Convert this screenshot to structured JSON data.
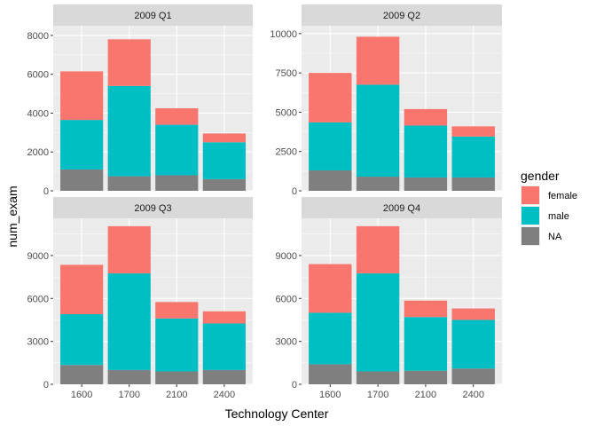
{
  "chart_data": {
    "type": "bar",
    "stacked": true,
    "xlabel": "Technology Center",
    "ylabel": "num_exam",
    "legend": {
      "title": "gender",
      "position": "right",
      "entries": [
        "female",
        "male",
        "NA"
      ]
    },
    "colors": {
      "female": "#F8766D",
      "male": "#00BFC4",
      "NA": "#7F7F7F"
    },
    "grid": true,
    "categories": [
      "1600",
      "1700",
      "2100",
      "2400"
    ],
    "panels": [
      {
        "title": "2009 Q1",
        "ylim": [
          0,
          8500
        ],
        "yticks": [
          0,
          2000,
          4000,
          6000,
          8000
        ],
        "ytick_labels": [
          "0",
          "2000",
          "4000",
          "6000",
          "8000"
        ],
        "series": [
          {
            "name": "NA",
            "values": [
              1100,
              750,
              800,
              600
            ]
          },
          {
            "name": "male",
            "values": [
              2550,
              4650,
              2600,
              1900
            ]
          },
          {
            "name": "female",
            "values": [
              2500,
              2400,
              850,
              450
            ]
          }
        ]
      },
      {
        "title": "2009 Q2",
        "ylim": [
          0,
          10500
        ],
        "yticks": [
          0,
          2500,
          5000,
          7500,
          10000
        ],
        "ytick_labels": [
          "0",
          "2500",
          "5000",
          "7500",
          "10000"
        ],
        "series": [
          {
            "name": "NA",
            "values": [
              1300,
              900,
              850,
              850
            ]
          },
          {
            "name": "male",
            "values": [
              3050,
              5850,
              3300,
              2600
            ]
          },
          {
            "name": "female",
            "values": [
              3150,
              3050,
              1050,
              650
            ]
          }
        ]
      },
      {
        "title": "2009 Q3",
        "ylim": [
          0,
          11600
        ],
        "yticks": [
          0,
          3000,
          6000,
          9000
        ],
        "ytick_labels": [
          "0",
          "3000",
          "6000",
          "9000"
        ],
        "series": [
          {
            "name": "NA",
            "values": [
              1350,
              1000,
              900,
              1000
            ]
          },
          {
            "name": "male",
            "values": [
              3550,
              6750,
              3700,
              3250
            ]
          },
          {
            "name": "female",
            "values": [
              3450,
              3300,
              1150,
              850
            ]
          }
        ]
      },
      {
        "title": "2009 Q4",
        "ylim": [
          0,
          11600
        ],
        "yticks": [
          0,
          3000,
          6000,
          9000
        ],
        "ytick_labels": [
          "0",
          "3000",
          "6000",
          "9000"
        ],
        "series": [
          {
            "name": "NA",
            "values": [
              1400,
              900,
              950,
              1100
            ]
          },
          {
            "name": "male",
            "values": [
              3600,
              6850,
              3750,
              3400
            ]
          },
          {
            "name": "female",
            "values": [
              3400,
              3300,
              1150,
              800
            ]
          }
        ]
      }
    ]
  }
}
